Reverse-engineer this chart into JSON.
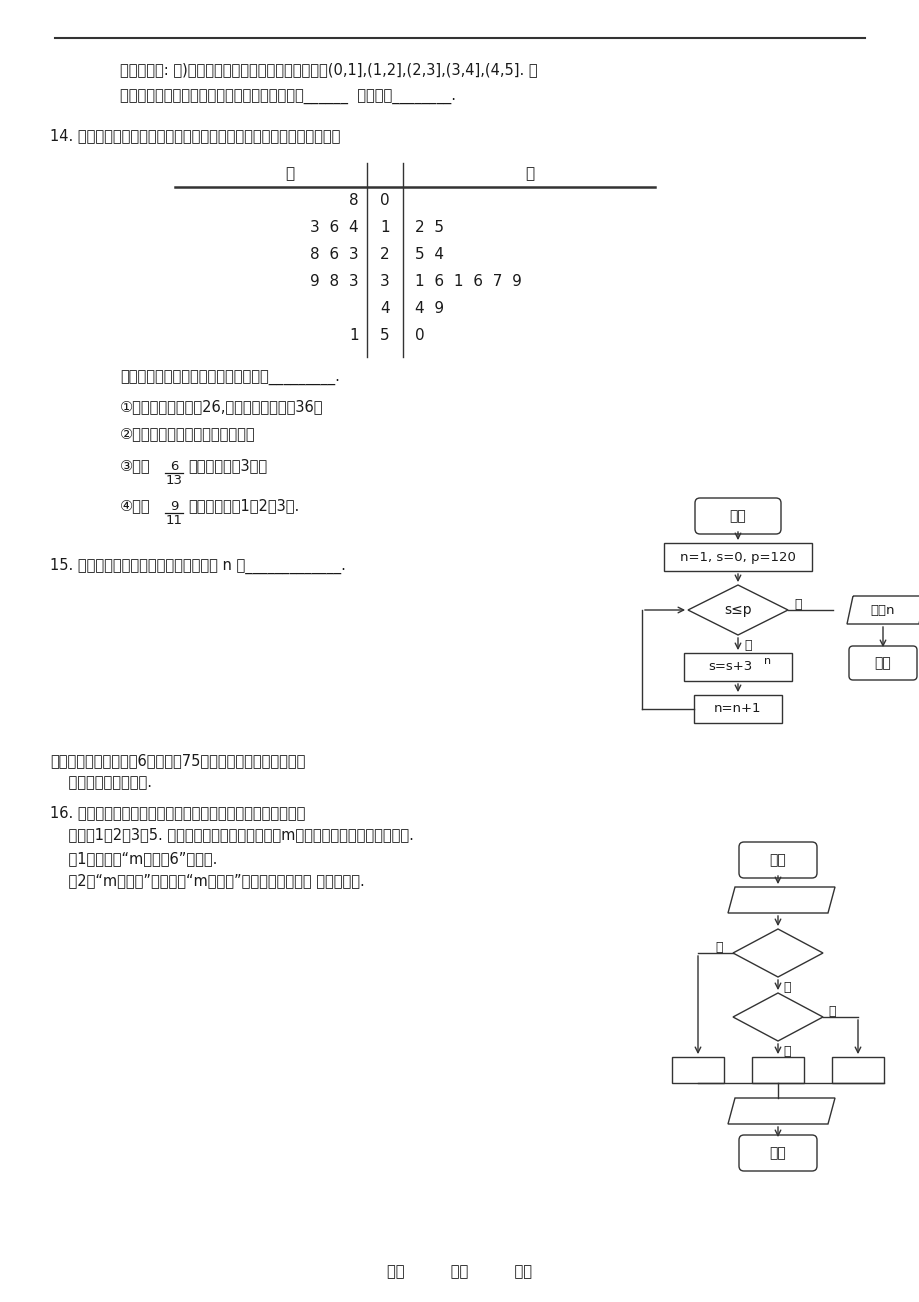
{
  "bg_color": "#ffffff",
  "text_color": "#1a1a1a",
  "para1_text": "水量（单位: 吨)的频率分布直方图，其中分组区间为(0,1],(1,2],(2,3],(3,4],(4,5]. 则",
  "para2_text": "由直方图可估计该城市居民月均用水量的众数是______  中位数是________.",
  "q14_text": "14. 某赛季甲、乙两名篮球运动员每场比赛得分情况用茌叶图表示如图：",
  "stem_rows": [
    {
      "stem": "0",
      "jia": [
        "8"
      ],
      "yi": []
    },
    {
      "stem": "1",
      "jia": [
        "4",
        "6",
        "3"
      ],
      "yi": [
        "2",
        "5"
      ]
    },
    {
      "stem": "2",
      "jia": [
        "3",
        "6",
        "8"
      ],
      "yi": [
        "5",
        "4"
      ]
    },
    {
      "stem": "3",
      "jia": [
        "3",
        "8",
        "9"
      ],
      "yi": [
        "1",
        "6",
        "1",
        "6",
        "7",
        "9"
      ]
    },
    {
      "stem": "4",
      "jia": [],
      "yi": [
        "4",
        "9"
      ]
    },
    {
      "stem": "5",
      "jia": [
        "1"
      ],
      "yi": [
        "0"
      ]
    }
  ],
  "stem_note": "根据以上茌叶图，下列说法中正确的有_________.",
  "item1": "①甲得分的中位数为26,乙得分的中位数为36；",
  "item2": "②甲、乙比较，甲的稳定性更好；",
  "item3_pre": "③乙有",
  "item3_num": "6",
  "item3_den": "13",
  "item3_post": "的叶集中在茌3上；",
  "item4_pre": "④甲有",
  "item4_num": "9",
  "item4_den": "11",
  "item4_post": "的叶集中在茌1、2、3上.",
  "q15_text": "15. 执行如图所示的程序框图，则输出的 n 为_____________.",
  "q3_header": "三、解答题：本大题六6小题，全75分，解答应写出文字说明、",
  "q3_header2": "    证明过程或演算步骤.",
  "q16_text1": "16. 两枚大小相同、质地均匀地正四面体玩具的各个面上分别定",
  "q16_text2": "    着数字1，2，3，5. 同时投掷这两枚玩具一次，记m为两个朝下的面上的数字之和.",
  "q16_text3": "    （1）求事件“m不小于6”的概率.",
  "q16_text4": "    （2）“m为奇数”的概率和“m为偶数”的概率是否相等？ 并给出证明.",
  "footer_text": "用心          爱心          专心",
  "flow1_start": "开始",
  "flow1_init": "n=1, s=0, p=120",
  "flow1_dec": "s≤p",
  "flow1_yes": "是",
  "flow1_no": "否",
  "flow1_proc": "s=s+3n",
  "flow1_upd": "n=n+1",
  "flow1_out": "输出n",
  "flow1_end": "结束",
  "flow2_start": "开始",
  "flow2_end": "结束",
  "flow2_no1": "否",
  "flow2_yes1": "是",
  "flow2_no2": "否",
  "flow2_yes2": "是"
}
